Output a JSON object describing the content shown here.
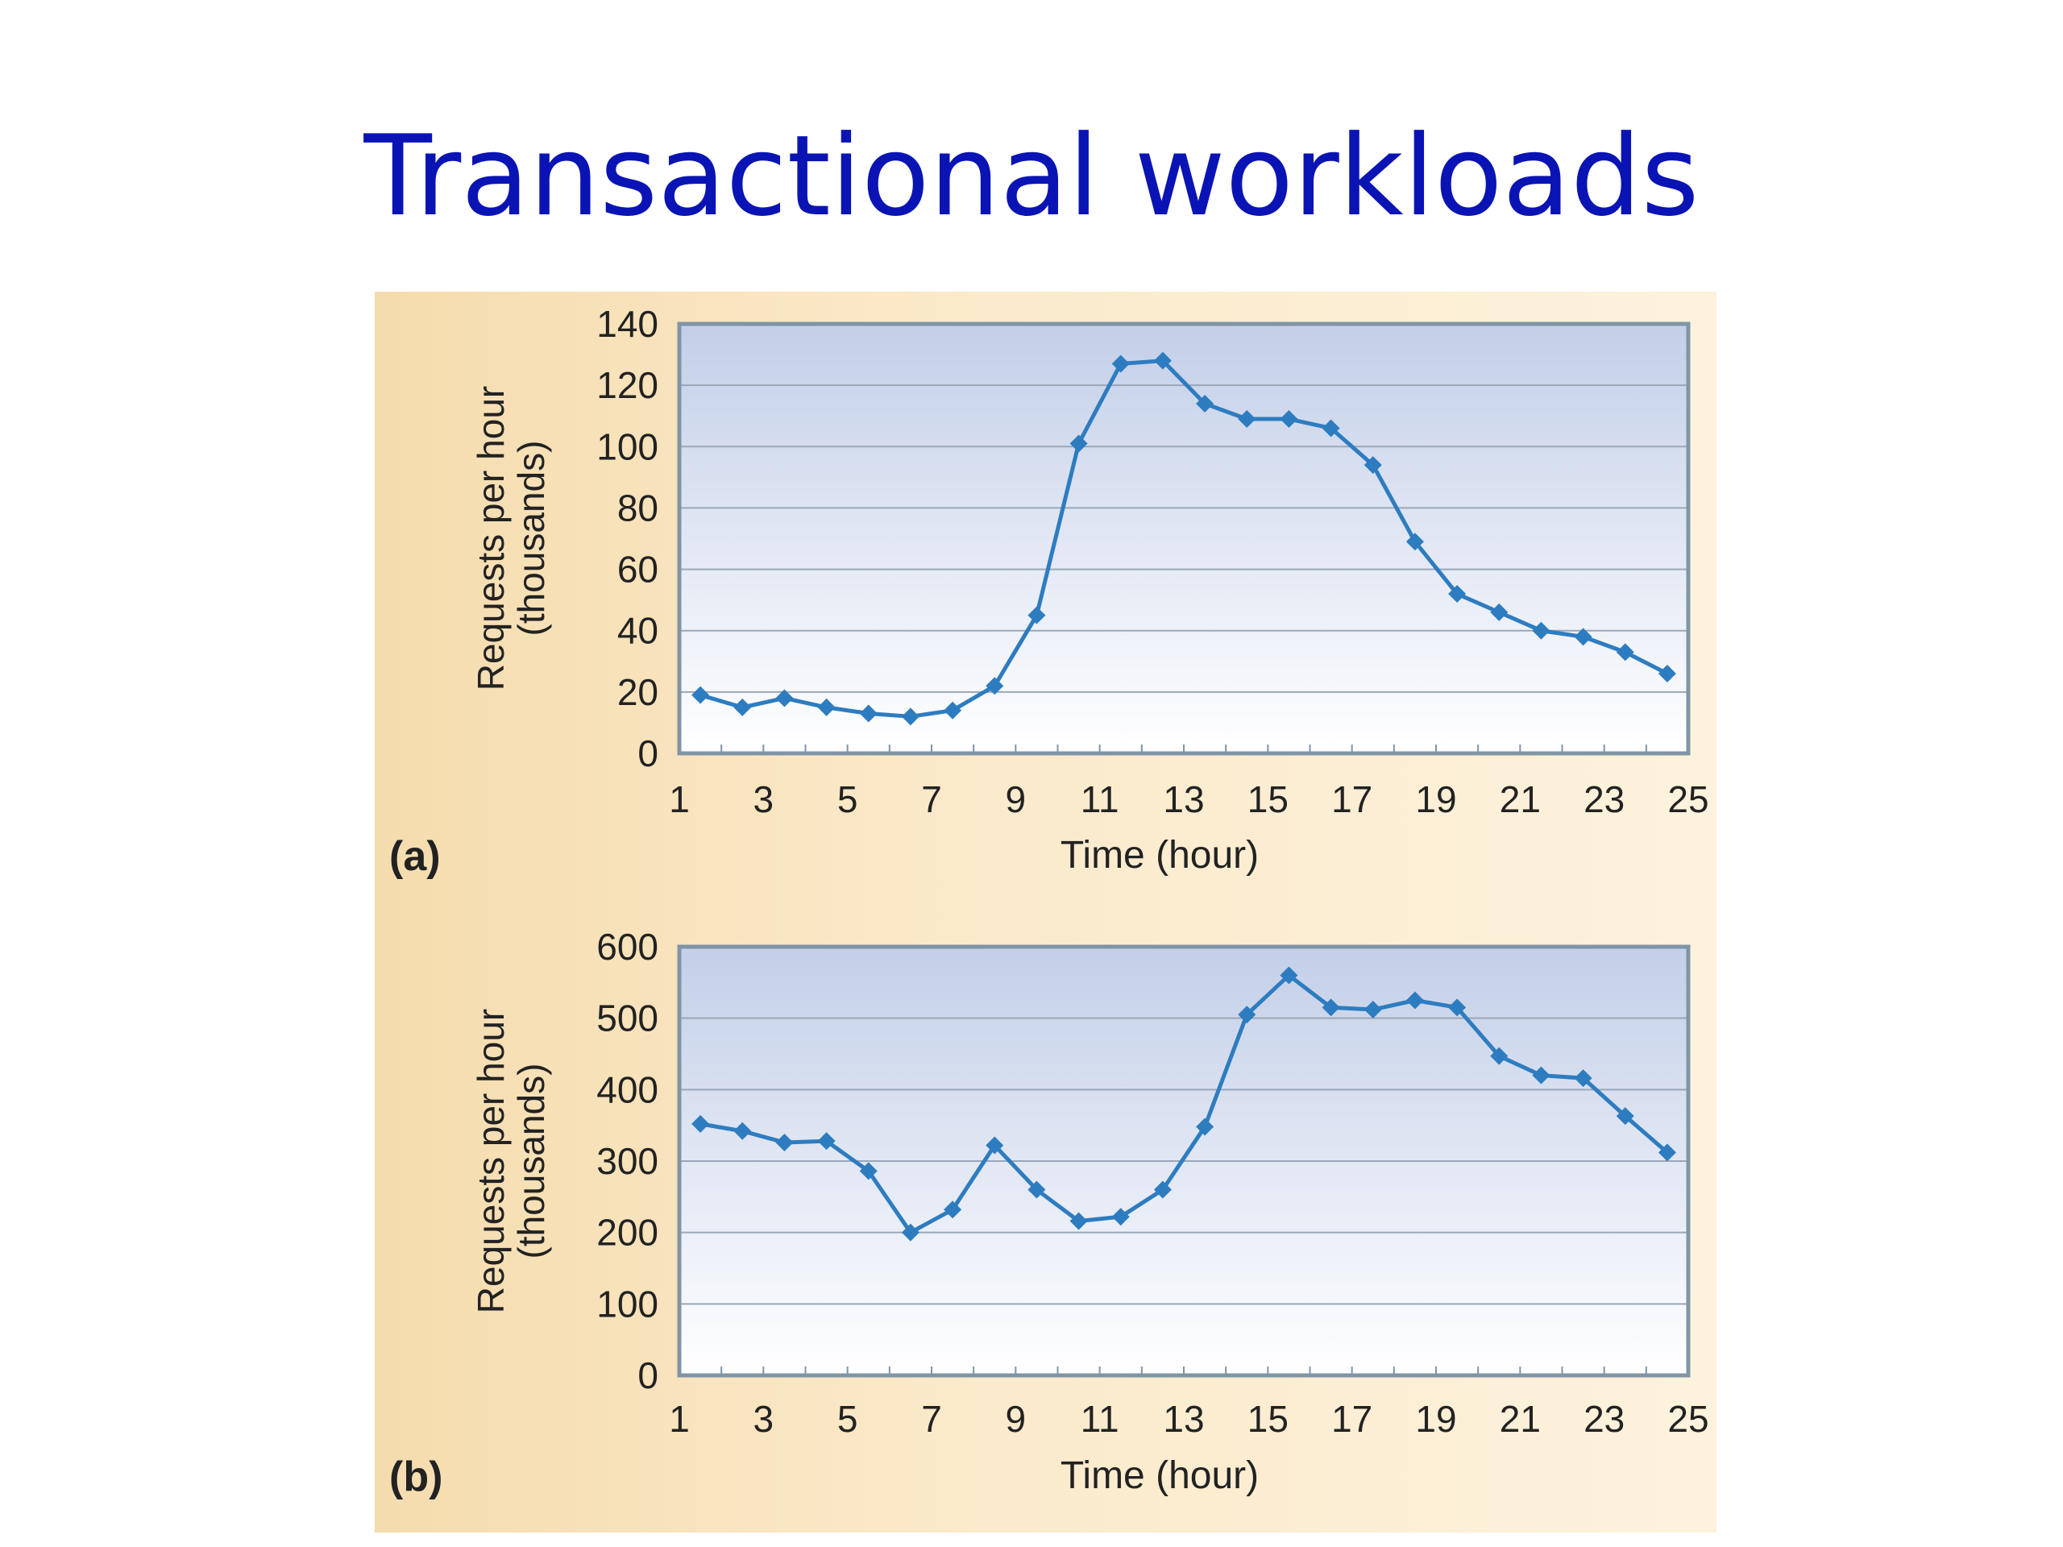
{
  "page": {
    "title": "Transactional workloads"
  },
  "colors": {
    "line": "#2e7cc0",
    "title": "#0a14b4",
    "grid": "#9aa7b8",
    "frame": "#7f95a6"
  },
  "chart_data": [
    {
      "type": "line",
      "panel_label": "(a)",
      "xlabel": "Time (hour)",
      "ylabel": [
        "Requests per hour",
        "(thousands)"
      ],
      "xlim": [
        1,
        25
      ],
      "ylim": [
        0,
        140
      ],
      "x_ticks": [
        "1",
        "3",
        "5",
        "7",
        "9",
        "11",
        "13",
        "15",
        "17",
        "19",
        "21",
        "23",
        "25"
      ],
      "y_ticks": [
        "0",
        "20",
        "40",
        "60",
        "80",
        "100",
        "120",
        "140"
      ],
      "grid": true,
      "series": [
        {
          "x": [
            1.5,
            2.5,
            3.5,
            4.5,
            5.5,
            6.5,
            7.5,
            8.5,
            9.5,
            10.5,
            11.5,
            12.5,
            13.5,
            14.5,
            15.5,
            16.5,
            17.5,
            18.5,
            19.5,
            20.5,
            21.5,
            22.5,
            23.5,
            24.5
          ],
          "values": [
            19,
            15,
            18,
            15,
            13,
            12,
            14,
            22,
            45,
            101,
            127,
            128,
            114,
            109,
            109,
            106,
            94,
            69,
            52,
            46,
            40,
            38,
            33,
            26
          ]
        }
      ]
    },
    {
      "type": "line",
      "panel_label": "(b)",
      "xlabel": "Time (hour)",
      "ylabel": [
        "Requests per hour",
        "(thousands)"
      ],
      "xlim": [
        1,
        25
      ],
      "ylim": [
        0,
        600
      ],
      "x_ticks": [
        "1",
        "3",
        "5",
        "7",
        "9",
        "11",
        "13",
        "15",
        "17",
        "19",
        "21",
        "23",
        "25"
      ],
      "y_ticks": [
        "0",
        "100",
        "200",
        "300",
        "400",
        "500",
        "600"
      ],
      "grid": true,
      "series": [
        {
          "x": [
            1.5,
            2.5,
            3.5,
            4.5,
            5.5,
            6.5,
            7.5,
            8.5,
            9.5,
            10.5,
            11.5,
            12.5,
            13.5,
            14.5,
            15.5,
            16.5,
            17.5,
            18.5,
            19.5,
            20.5,
            21.5,
            22.5,
            23.5,
            24.5
          ],
          "values": [
            352,
            342,
            326,
            328,
            286,
            200,
            232,
            322,
            260,
            216,
            222,
            260,
            348,
            505,
            560,
            515,
            512,
            525,
            515,
            447,
            420,
            416,
            363,
            312
          ]
        }
      ]
    }
  ]
}
